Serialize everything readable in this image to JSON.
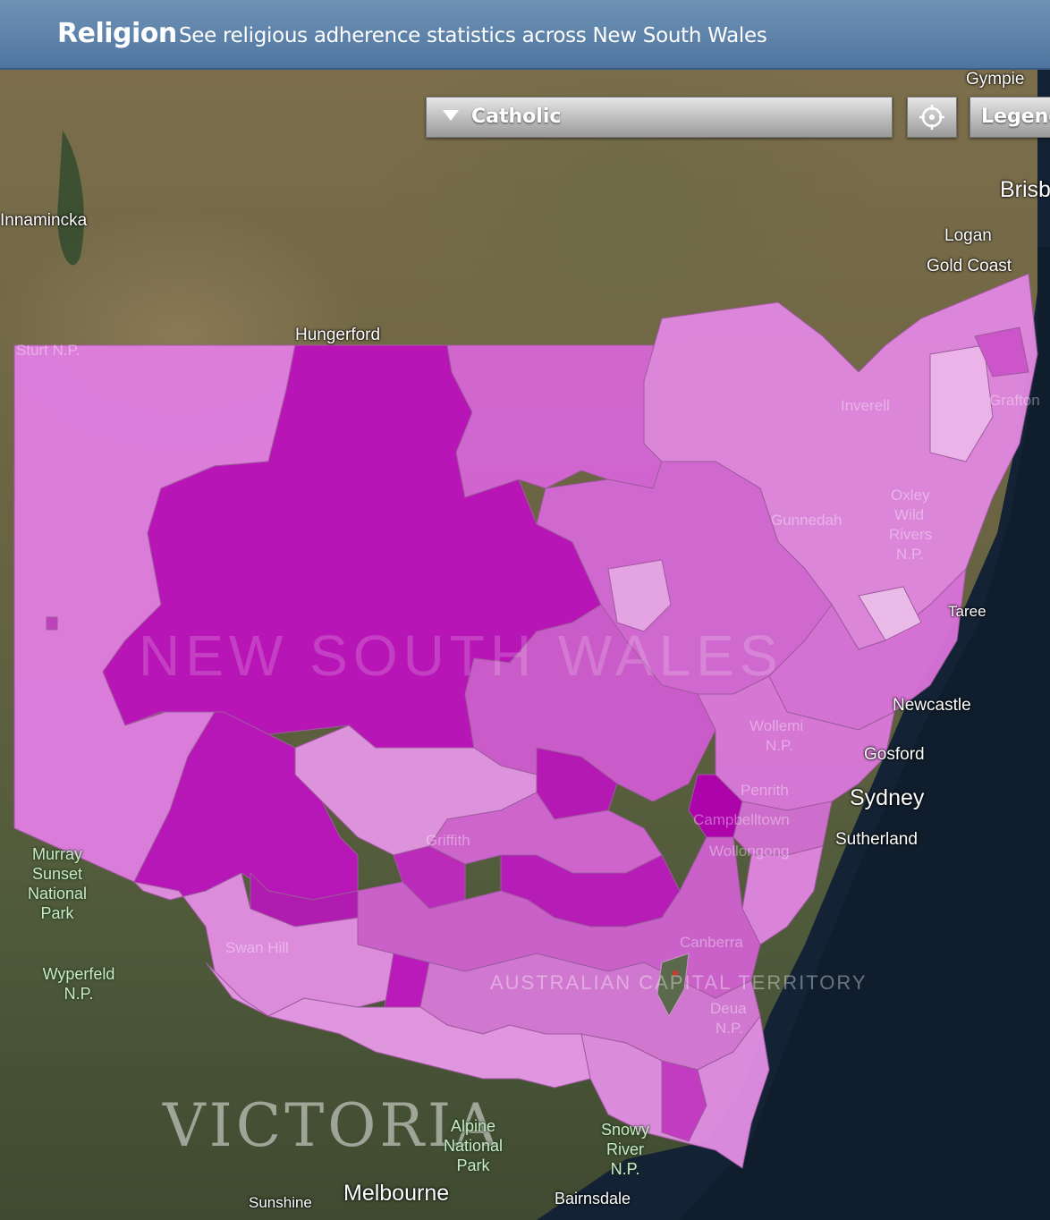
{
  "header": {
    "title": "Religion",
    "subtitle": "See religious adherence statistics across New South Wales"
  },
  "controls": {
    "religion_select": "Catholic",
    "legend_label": "Legend",
    "locate_icon": "crosshair-icon"
  },
  "map": {
    "region_watermark": "NEW SOUTH WALES",
    "neighbour_watermark": "VICTORIA",
    "act_label": "AUSTRALIAN CAPITAL TERRITORY",
    "shading_color": "#c010c0",
    "places": {
      "gympie": "Gympie",
      "brisbane": "Brisb",
      "innamincka": "Innamincka",
      "logan": "Logan",
      "gold_coast": "Gold Coast",
      "hungerford": "Hungerford",
      "sturt": "Sturt N.P.",
      "inverell": "Inverell",
      "grafton": "Grafton",
      "oxley_1": "Oxley",
      "oxley_2": "Wild",
      "oxley_3": "Rivers",
      "oxley_4": "N.P.",
      "gunnedah": "Gunnedah",
      "taree": "Taree",
      "newcastle": "Newcastle",
      "wollemi_1": "Wollemi",
      "wollemi_2": "N.P.",
      "gosford": "Gosford",
      "penrith": "Penrith",
      "sydney": "Sydney",
      "campbelltown": "Campbelltown",
      "sutherland": "Sutherland",
      "wollongong": "Wollongong",
      "griffith": "Griffith",
      "canberra": "Canberra",
      "swan_hill": "Swan Hill",
      "deua_1": "Deua",
      "deua_2": "N.P.",
      "sunshine": "Sunshine",
      "melbourne": "Melbourne",
      "bairnsdale": "Bairnsdale"
    },
    "parks": {
      "murray_1": "Murray",
      "murray_2": "Sunset",
      "murray_3": "National",
      "murray_4": "Park",
      "wyperfeld_1": "Wyperfeld",
      "wyperfeld_2": "N.P.",
      "alpine_1": "Alpine",
      "alpine_2": "National",
      "alpine_3": "Park",
      "snowy_1": "Snowy",
      "snowy_2": "River",
      "snowy_3": "N.P."
    }
  }
}
